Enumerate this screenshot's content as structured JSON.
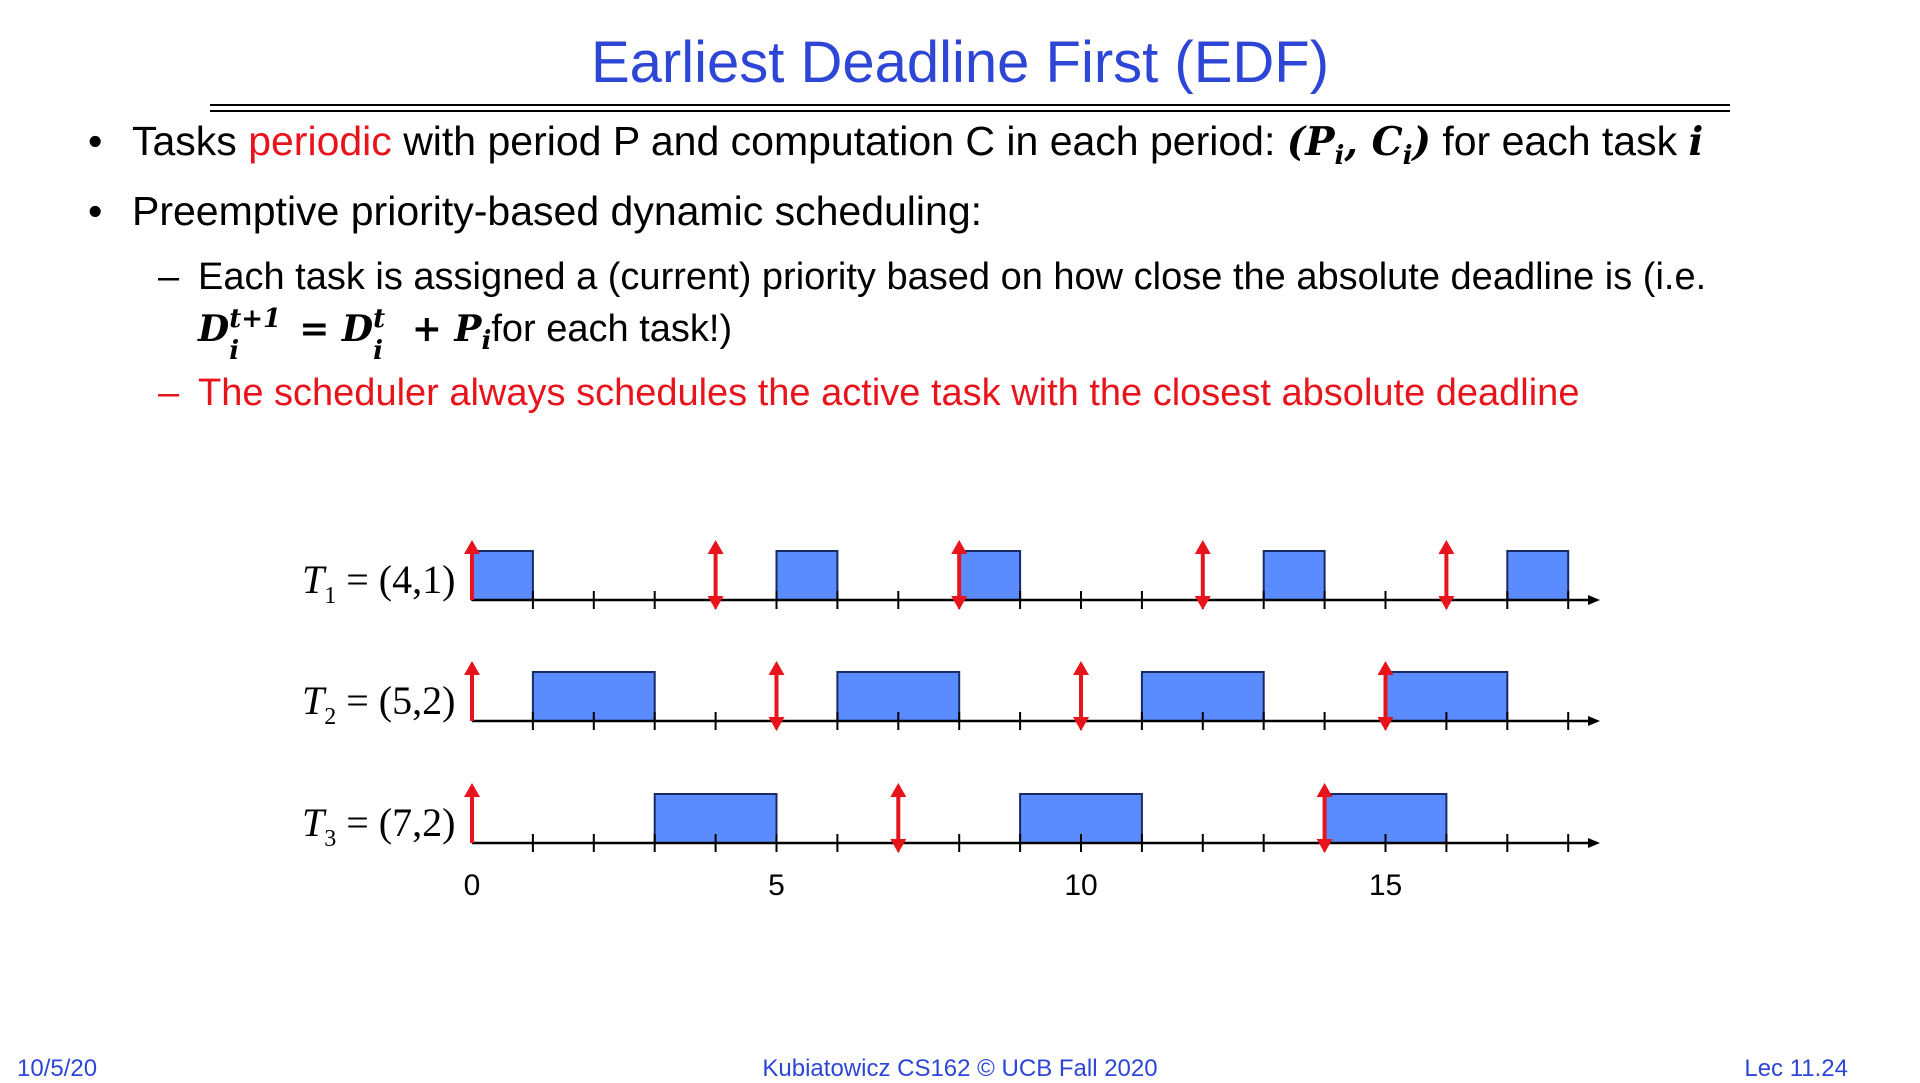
{
  "slide": {
    "title": "Earliest Deadline First (EDF)",
    "bullets": [
      {
        "pre": "Tasks ",
        "highlight": "periodic",
        "post": " with period P and computation C in each period:  ",
        "math": "(P",
        "math_sub1": "i",
        "math_mid": ", C",
        "math_sub2": "i",
        "math_end": ")",
        "tail": " for each task ",
        "tail_math": "i"
      },
      {
        "text": "Preemptive priority-based dynamic scheduling:"
      }
    ],
    "subbullets": {
      "first_line": "Each task is assigned a (current) priority based on how close the absolute deadline is (i.e.",
      "formula_D": "D",
      "formula_sup1": "t+1",
      "formula_sub1": "i",
      "formula_eq": "= D",
      "formula_sup2": "t",
      "formula_sub2": "i",
      "formula_plus": "+ P",
      "formula_sub3": "i",
      "second_tail": "for each task!)",
      "second": "The scheduler always schedules the active task with the closest absolute deadline"
    },
    "footer": {
      "date": "10/5/20",
      "course": "Kubiatowicz CS162 © UCB Fall 2020",
      "lecture": "Lec 11.24"
    },
    "colors": {
      "title": "#2e46d6",
      "highlight": "#e8141c",
      "bar": "#5b8cff",
      "arrow": "#e8141c"
    }
  },
  "chart_data": {
    "type": "gantt",
    "x_ticks": [
      "0",
      "5",
      "10",
      "15"
    ],
    "time_range": [
      0,
      18
    ],
    "tasks": [
      {
        "label_T": "T",
        "label_sub": "1",
        "label_rest": " = (4,1)",
        "period": 4,
        "computation": 1,
        "executions": [
          [
            0,
            1
          ],
          [
            5,
            6
          ],
          [
            8,
            9
          ],
          [
            13,
            14
          ],
          [
            17,
            18
          ]
        ],
        "releases": [
          0,
          4,
          8,
          12,
          16
        ]
      },
      {
        "label_T": "T",
        "label_sub": "2",
        "label_rest": " = (5,2)",
        "period": 5,
        "computation": 2,
        "executions": [
          [
            1,
            3
          ],
          [
            6,
            8
          ],
          [
            11,
            13
          ],
          [
            15,
            17
          ]
        ],
        "releases": [
          0,
          5,
          10,
          15
        ]
      },
      {
        "label_T": "T",
        "label_sub": "3",
        "label_rest": " = (7,2)",
        "period": 7,
        "computation": 2,
        "executions": [
          [
            3,
            5
          ],
          [
            9,
            11
          ],
          [
            14,
            16
          ]
        ],
        "releases": [
          0,
          7,
          14
        ]
      }
    ]
  }
}
